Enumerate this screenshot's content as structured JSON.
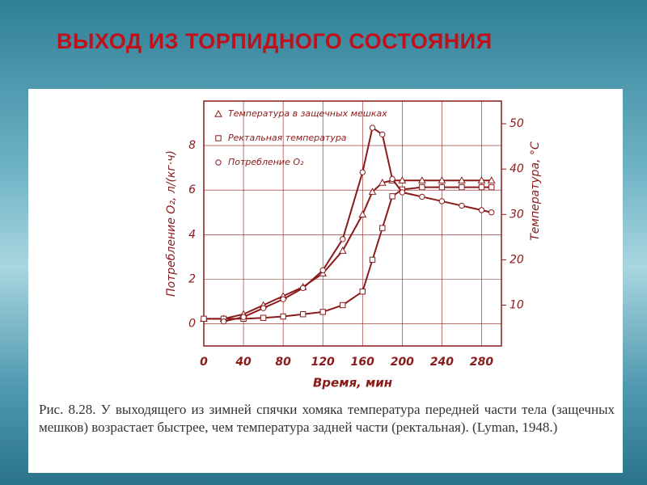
{
  "title": "ВЫХОД ИЗ ТОРПИДНОГО СОСТОЯНИЯ",
  "caption": "Рис. 8.28. У выходящего из зимней спячки хомяка температура передней части тела (защечных мешков) возрастает быстрее, чем температура задней части (ректальная). (Lyman, 1948.)",
  "chart_data": {
    "type": "line",
    "x_label": "Время, мин",
    "y_label": "Потребление O₂, л/(кг·ч)",
    "y2_label": "Температура, °С",
    "x": [
      0,
      20,
      40,
      60,
      80,
      100,
      120,
      140,
      160,
      170,
      180,
      190,
      200,
      220,
      240,
      260,
      280,
      290
    ],
    "xlim": [
      0,
      300
    ],
    "xticks": [
      0,
      40,
      80,
      120,
      160,
      200,
      240,
      280
    ],
    "ylim": [
      -1,
      10
    ],
    "yticks": [
      0,
      2,
      4,
      6,
      8
    ],
    "y2lim": [
      1,
      55
    ],
    "y2ticks": [
      10,
      20,
      30,
      40,
      50
    ],
    "grid": true,
    "series": [
      {
        "name": "Температура в защечных мешках",
        "color": "#8b1a1a",
        "marker": "triangle",
        "axis": "y2",
        "values": [
          7,
          7,
          8,
          10,
          12,
          14,
          17,
          22,
          30,
          35,
          37,
          37.5,
          37.5,
          37.5,
          37.5,
          37.5,
          37.5,
          37.5
        ]
      },
      {
        "name": "Ректальная температура",
        "color": "#8b1a1a",
        "marker": "square",
        "axis": "y2",
        "values": [
          7,
          7,
          7,
          7.2,
          7.5,
          8,
          8.5,
          10,
          13,
          20,
          27,
          34,
          35.5,
          36,
          36,
          36,
          36,
          36
        ]
      },
      {
        "name": "Потребление O₂",
        "color": "#8b1a1a",
        "marker": "circle",
        "axis": "y",
        "values": [
          null,
          0.1,
          0.3,
          0.7,
          1.1,
          1.6,
          2.4,
          3.8,
          6.8,
          8.8,
          8.5,
          6.5,
          5.9,
          5.7,
          5.5,
          5.3,
          5.1,
          5.0
        ]
      }
    ]
  }
}
